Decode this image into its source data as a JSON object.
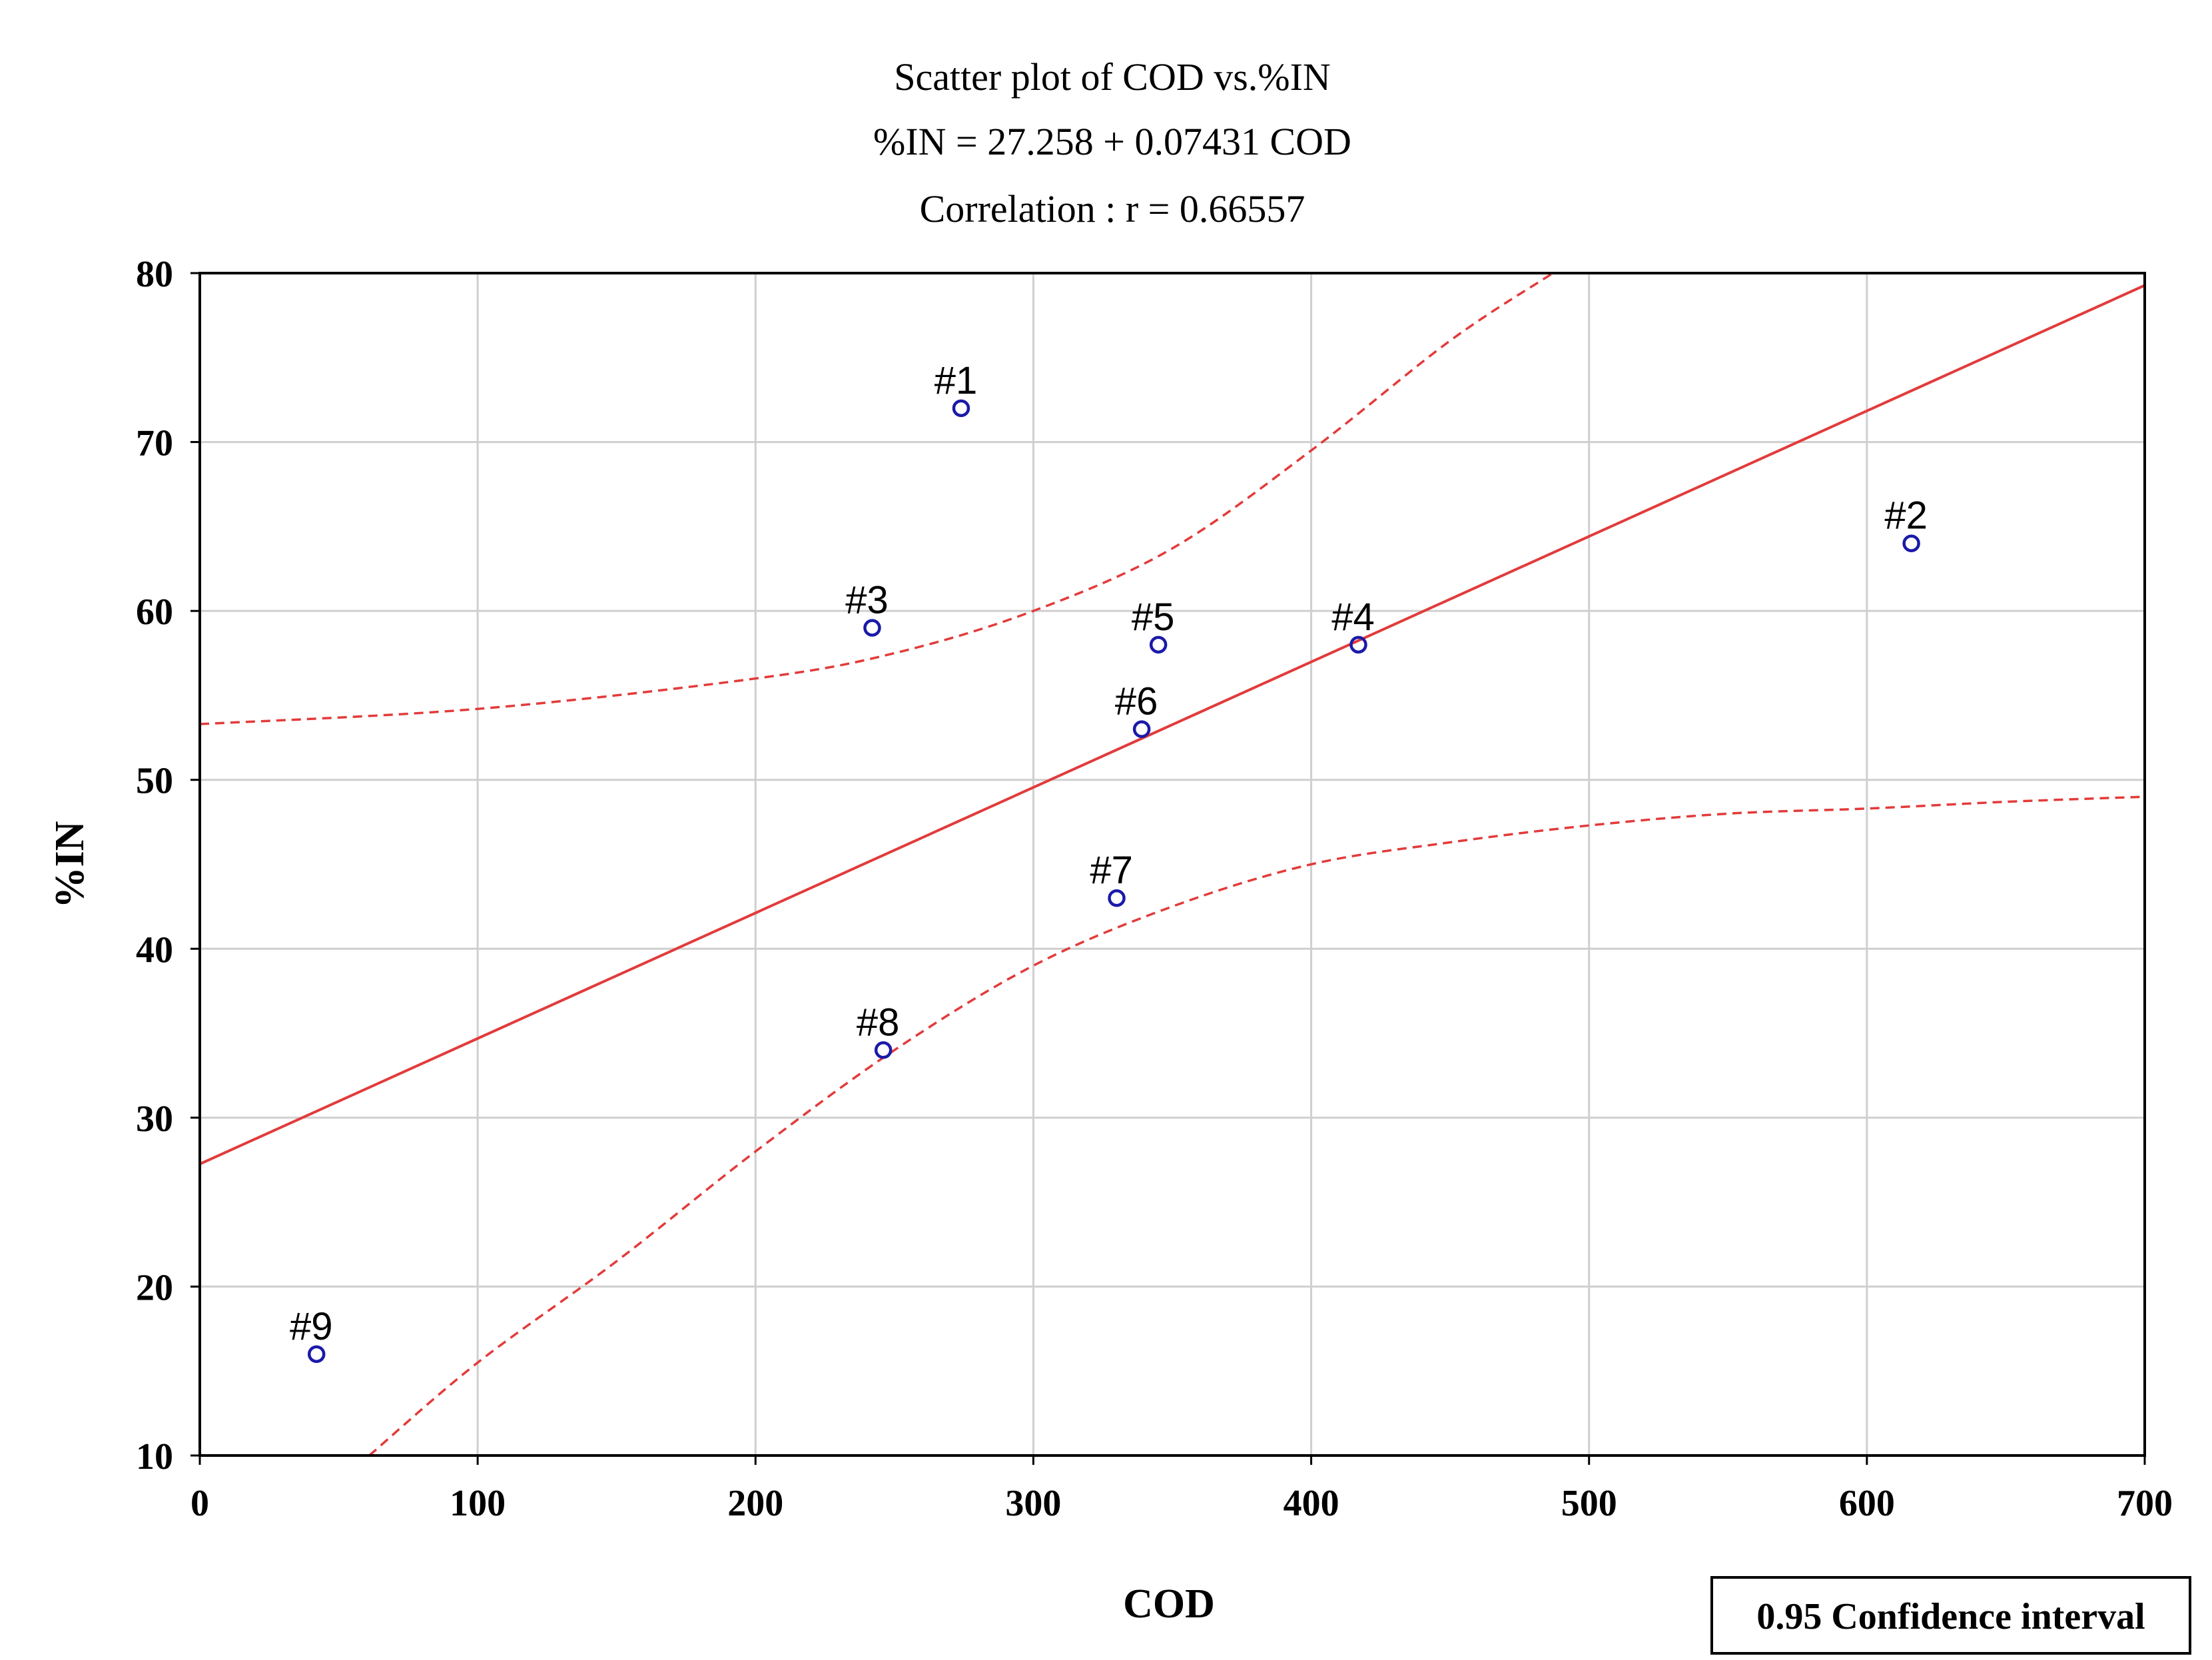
{
  "chart_data": {
    "type": "scatter",
    "title_lines": [
      "Scatter plot of COD vs.%IN",
      "%IN = 27.258 + 0.07431 COD",
      "Correlation : r = 0.66557"
    ],
    "xlabel": "COD",
    "ylabel": "%IN",
    "xlim": [
      0,
      700
    ],
    "ylim": [
      10,
      80
    ],
    "xticks": [
      0,
      100,
      200,
      300,
      400,
      500,
      600,
      700
    ],
    "yticks": [
      10,
      20,
      30,
      40,
      50,
      60,
      70,
      80
    ],
    "grid": true,
    "points": [
      {
        "label": "#1",
        "x": 274,
        "y": 72
      },
      {
        "label": "#2",
        "x": 616,
        "y": 64
      },
      {
        "label": "#3",
        "x": 242,
        "y": 59
      },
      {
        "label": "#4",
        "x": 417,
        "y": 58
      },
      {
        "label": "#5",
        "x": 345,
        "y": 58
      },
      {
        "label": "#6",
        "x": 339,
        "y": 53
      },
      {
        "label": "#7",
        "x": 330,
        "y": 43
      },
      {
        "label": "#8",
        "x": 246,
        "y": 34
      },
      {
        "label": "#9",
        "x": 42,
        "y": 16
      }
    ],
    "regression": {
      "intercept": 27.258,
      "slope": 0.07431
    },
    "confidence_upper": [
      [
        0,
        53.3
      ],
      [
        100,
        54.2
      ],
      [
        200,
        56.0
      ],
      [
        250,
        57.5
      ],
      [
        300,
        60.0
      ],
      [
        350,
        63.7
      ],
      [
        400,
        69.5
      ],
      [
        450,
        76.0
      ],
      [
        487,
        80
      ]
    ],
    "confidence_lower": [
      [
        61,
        10
      ],
      [
        100,
        15.5
      ],
      [
        150,
        21.5
      ],
      [
        200,
        28.0
      ],
      [
        250,
        34.0
      ],
      [
        300,
        39.0
      ],
      [
        350,
        42.5
      ],
      [
        400,
        45.0
      ],
      [
        450,
        46.3
      ],
      [
        500,
        47.3
      ],
      [
        550,
        48.0
      ],
      [
        600,
        48.3
      ],
      [
        650,
        48.7
      ],
      [
        700,
        49.0
      ]
    ],
    "legend": "0.95 Confidence interval",
    "legend_position": "bottom-right",
    "colors": {
      "points": "#1a1aa8",
      "regression": "#e23b3b",
      "confidence": "#e23b3b",
      "grid": "#cfcfcf",
      "axis": "#000000"
    }
  }
}
